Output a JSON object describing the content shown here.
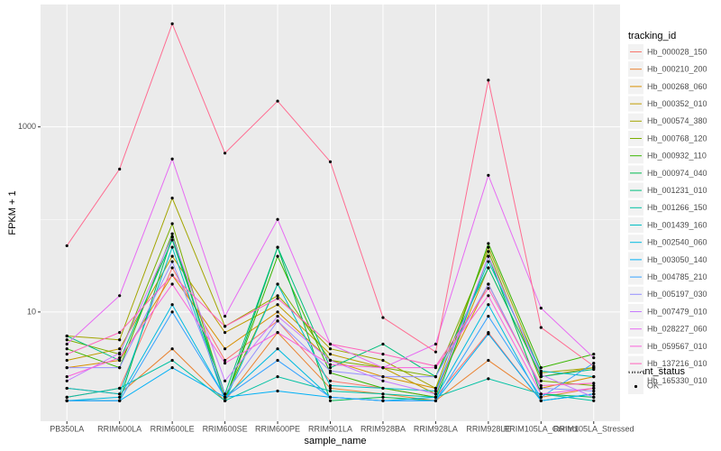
{
  "chart_data": {
    "type": "line",
    "x_label": "sample_name",
    "y_label": "FPKM + 1",
    "log_y": true,
    "grid": true,
    "categories": [
      "PB350LA",
      "RRIM600LA",
      "RRIM600LE",
      "RRIM600SE",
      "RRIM600PE",
      "RRIM901LA",
      "RRIM928BA",
      "RRIM928LA",
      "RRIM928LE",
      "RRIM105LA_Control",
      "RRIM105LA_Stressed"
    ],
    "ylim": [
      0.66,
      21000
    ],
    "yticks": [
      10,
      1000
    ],
    "legend_title": "tracking_id",
    "point_legend_title": "quant_status",
    "point_legend_label": "OK",
    "point_color": "#000000",
    "series": [
      {
        "name": "Hb_000028_150",
        "color": "#F8766D",
        "values": [
          1.2,
          1.5,
          30,
          3,
          8,
          1.8,
          1.5,
          1.2,
          6,
          1.1,
          1.3
        ]
      },
      {
        "name": "Hb_000210_200",
        "color": "#EA8331",
        "values": [
          1.5,
          1.3,
          4,
          1.1,
          6,
          1.5,
          1.3,
          1.1,
          3,
          1.2,
          1.5
        ]
      },
      {
        "name": "Hb_000268_060",
        "color": "#D89000",
        "values": [
          2.5,
          3,
          25,
          4,
          10,
          3,
          2,
          1.5,
          20,
          1.5,
          2
        ]
      },
      {
        "name": "Hb_000352_010",
        "color": "#C09B00",
        "values": [
          3,
          4,
          40,
          6,
          12,
          3.5,
          2.5,
          1.3,
          30,
          2,
          2.5
        ]
      },
      {
        "name": "Hb_000574_380",
        "color": "#A3A500",
        "values": [
          5.5,
          5,
          170,
          7,
          15,
          4,
          3,
          1.5,
          50,
          2.2,
          2.5
        ]
      },
      {
        "name": "Hb_000768_120",
        "color": "#7CAE00",
        "values": [
          5,
          3.5,
          90,
          1.2,
          20,
          3,
          2.5,
          2,
          45,
          1.8,
          1.6
        ]
      },
      {
        "name": "Hb_000932_110",
        "color": "#39B600",
        "values": [
          4,
          2.5,
          70,
          1.1,
          40,
          2.2,
          1.5,
          1.2,
          55,
          2.5,
          3.5
        ]
      },
      {
        "name": "Hb_000974_040",
        "color": "#00BB4E",
        "values": [
          1.1,
          1.1,
          65,
          1.1,
          50,
          1.1,
          1.2,
          1.1,
          40,
          1.3,
          1.2
        ]
      },
      {
        "name": "Hb_001231_010",
        "color": "#00BF7D",
        "values": [
          5.5,
          3,
          60,
          1.3,
          50,
          2.5,
          4.5,
          2,
          30,
          2,
          2.4
        ]
      },
      {
        "name": "Hb_001266_150",
        "color": "#00C1A3",
        "values": [
          1.2,
          1.5,
          3,
          1.1,
          2,
          1.4,
          1.3,
          1.2,
          1.9,
          1.3,
          1.1
        ]
      },
      {
        "name": "Hb_001439_160",
        "color": "#00BFC4",
        "values": [
          1.5,
          1.3,
          50,
          1.1,
          20,
          1.6,
          1.5,
          1.4,
          35,
          2.3,
          2
        ]
      },
      {
        "name": "Hb_002540_060",
        "color": "#00BAE0",
        "values": [
          1.1,
          1.2,
          12,
          1.2,
          4,
          1.2,
          1.1,
          1.2,
          12,
          1.1,
          1.3
        ]
      },
      {
        "name": "Hb_003050_140",
        "color": "#00B0F6",
        "values": [
          1.1,
          1.1,
          2.5,
          1.2,
          1.4,
          1.2,
          1.1,
          1.1,
          5.8,
          1.1,
          1.3
        ]
      },
      {
        "name": "Hb_004785_210",
        "color": "#35A2FF",
        "values": [
          1.1,
          1.1,
          10,
          1.2,
          3,
          1.2,
          1.1,
          1.1,
          9,
          1.2,
          2.8
        ]
      },
      {
        "name": "Hb_005197_030",
        "color": "#9590FF",
        "values": [
          2.5,
          2.5,
          35,
          1.3,
          8,
          2.3,
          2,
          2,
          20,
          1.5,
          1.4
        ]
      },
      {
        "name": "Hb_007479_010",
        "color": "#C77CFF",
        "values": [
          1.8,
          3.6,
          65,
          1.8,
          9,
          3,
          1.8,
          1.3,
          40,
          2.1,
          1.2
        ]
      },
      {
        "name": "Hb_028227_060",
        "color": "#E76BF3",
        "values": [
          4.5,
          15,
          450,
          9,
          100,
          4.5,
          2.5,
          4.5,
          300,
          11,
          3.2
        ]
      },
      {
        "name": "Hb_059567_010",
        "color": "#FA62DB",
        "values": [
          2,
          3.2,
          20,
          2.8,
          6,
          2.7,
          2.5,
          2.5,
          15,
          1.3,
          1.5
        ]
      },
      {
        "name": "Hb_137216_010",
        "color": "#FF62BC",
        "values": [
          3.5,
          6,
          25,
          7,
          14,
          4.5,
          3.5,
          2.6,
          18,
          1.6,
          1.7
        ]
      },
      {
        "name": "Hb_165330_010",
        "color": "#FF6C91",
        "values": [
          52,
          350,
          13000,
          520,
          1900,
          420,
          8.7,
          3.7,
          3200,
          6.8,
          2.6
        ]
      }
    ]
  }
}
